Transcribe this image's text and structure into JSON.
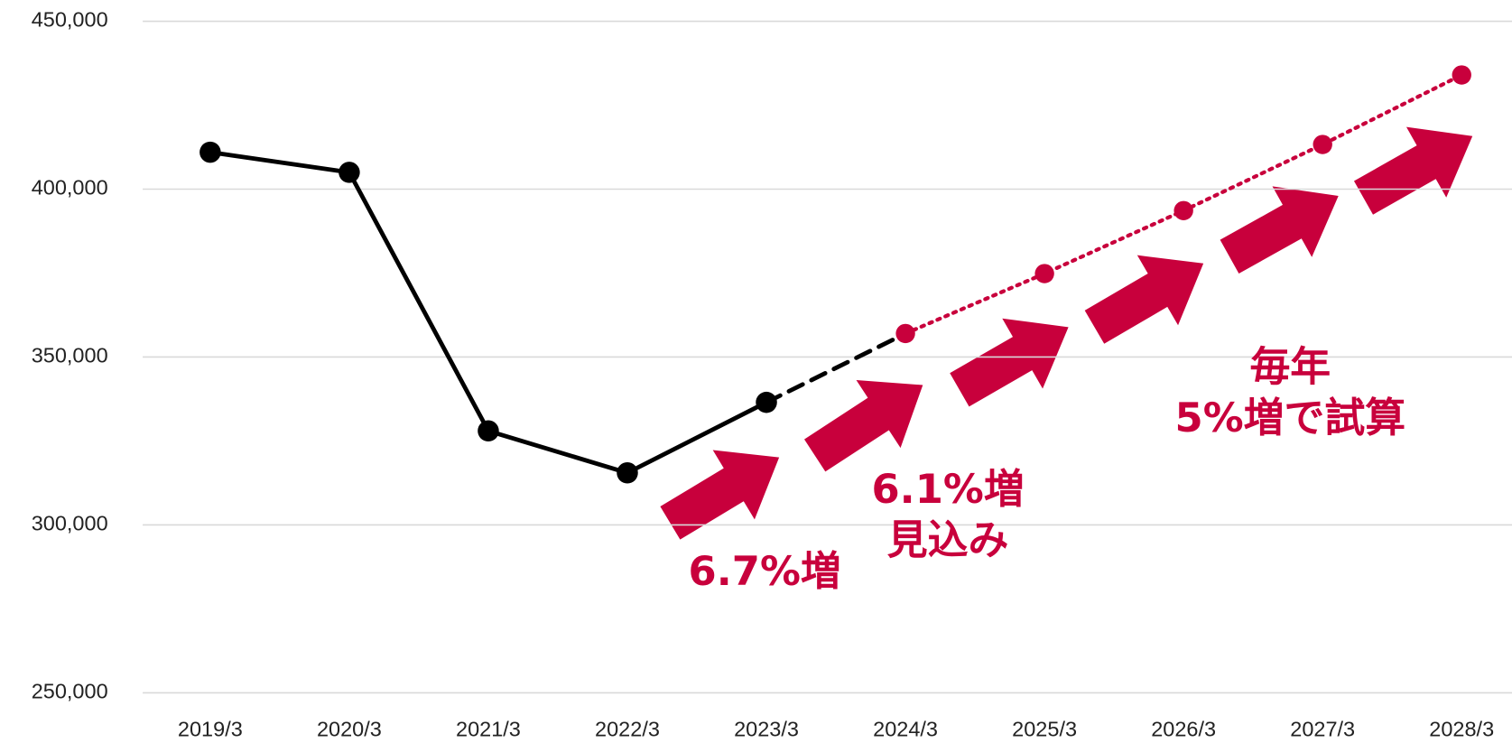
{
  "chart_data": {
    "type": "line",
    "categories": [
      "2019/3",
      "2020/3",
      "2021/3",
      "2022/3",
      "2023/3",
      "2024/3",
      "2025/3",
      "2026/3",
      "2027/3",
      "2028/3"
    ],
    "series": [
      {
        "color": "#000000",
        "style": "solid",
        "marker": true,
        "values": [
          411000,
          405000,
          328000,
          315500,
          336500,
          null,
          null,
          null,
          null,
          null
        ]
      },
      {
        "color": "#000000",
        "style": "dashed",
        "marker": false,
        "values": [
          null,
          null,
          null,
          null,
          336500,
          357000,
          null,
          null,
          null,
          null
        ]
      },
      {
        "color": "#c8003c",
        "style": "dotted",
        "marker": true,
        "values": [
          null,
          null,
          null,
          null,
          null,
          357000,
          374850,
          393600,
          413300,
          434000
        ]
      }
    ],
    "ylim": [
      250000,
      450000
    ],
    "yticks": [
      {
        "value": 250000,
        "label": "250,000"
      },
      {
        "value": 300000,
        "label": "300,000"
      },
      {
        "value": 350000,
        "label": "350,000"
      },
      {
        "value": 400000,
        "label": "400,000"
      },
      {
        "value": 450000,
        "label": "450,000"
      }
    ],
    "grid": true,
    "annotations": [
      [
        "6.7%増"
      ],
      [
        "6.1%増",
        "見込み"
      ],
      [
        "毎年",
        "5%増で試算"
      ]
    ]
  }
}
